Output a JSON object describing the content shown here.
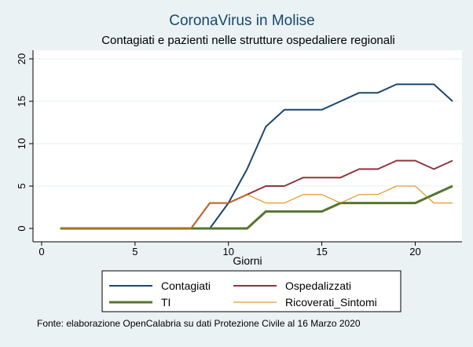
{
  "chart_data": {
    "type": "line",
    "title": "CoronaVirus in Molise",
    "subtitle": "Contagiati e pazienti nelle strutture ospedaliere regionali",
    "xlabel": "Giorni",
    "ylabel": "",
    "xlim": [
      0,
      22
    ],
    "ylim": [
      0,
      20
    ],
    "xticks": [
      0,
      5,
      10,
      15,
      20
    ],
    "yticks": [
      0,
      5,
      10,
      15,
      20
    ],
    "grid": "horizontal",
    "legend_position": "bottom",
    "x": [
      1,
      2,
      3,
      4,
      5,
      6,
      7,
      8,
      9,
      10,
      11,
      12,
      13,
      14,
      15,
      16,
      17,
      18,
      19,
      20,
      21,
      22
    ],
    "series": [
      {
        "name": "Contagiati",
        "color": "#1a476f",
        "width": 2,
        "values": [
          0,
          0,
          0,
          0,
          0,
          0,
          0,
          0,
          0,
          3,
          7,
          12,
          14,
          14,
          14,
          15,
          16,
          16,
          17,
          17,
          17,
          15
        ]
      },
      {
        "name": "Ospedalizzati",
        "color": "#90353b",
        "width": 2,
        "values": [
          0,
          0,
          0,
          0,
          0,
          0,
          0,
          0,
          3,
          3,
          4,
          5,
          5,
          6,
          6,
          6,
          7,
          7,
          8,
          8,
          7,
          8
        ]
      },
      {
        "name": "TI",
        "color": "#55752f",
        "width": 3,
        "values": [
          0,
          0,
          0,
          0,
          0,
          0,
          0,
          0,
          0,
          0,
          0,
          2,
          2,
          2,
          2,
          3,
          3,
          3,
          3,
          3,
          4,
          5
        ]
      },
      {
        "name": "Ricoverati_Sintomi",
        "color": "#e37e00",
        "width": 1,
        "values": [
          0,
          0,
          0,
          0,
          0,
          0,
          0,
          0,
          3,
          3,
          4,
          3,
          3,
          4,
          4,
          3,
          4,
          4,
          5,
          5,
          3,
          3
        ]
      }
    ],
    "note": "Fonte: elaborazione OpenCalabria su dati Protezione Civile al 16 Marzo 2020"
  }
}
